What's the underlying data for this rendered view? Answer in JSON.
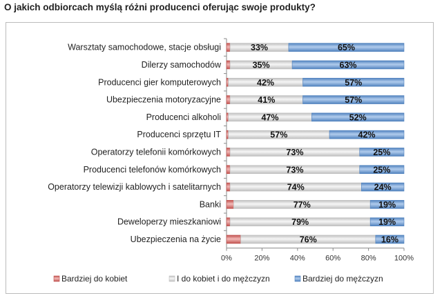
{
  "chart_data": {
    "type": "bar",
    "orientation": "horizontal",
    "stacked": true,
    "title": "O jakich odbiorcach myślą różni producenci oferując swoje produkty?",
    "categories": [
      "Warsztaty samochodowe, stacje obsługi",
      "Dilerzy samochodów",
      "Producenci gier komputerowych",
      "Ubezpieczenia motoryzacyjne",
      "Producenci alkoholi",
      "Producenci sprzętu IT",
      "Operatorzy telefonii komórkowych",
      "Producenci telefonów komórkowych",
      "Operatorzy telewizji kablowych i satelitarnych",
      "Banki",
      "Deweloperzy mieszkaniowi",
      "Ubezpieczenia na życie"
    ],
    "series": [
      {
        "name": "Bardziej do kobiet",
        "color": "#c0504d",
        "values": [
          2,
          2,
          1,
          2,
          1,
          1,
          2,
          2,
          2,
          4,
          2,
          8
        ],
        "labeled": false
      },
      {
        "name": "I do kobiet i do mężczyzn",
        "color": "#bfbfbf",
        "values": [
          33,
          35,
          42,
          41,
          47,
          57,
          73,
          73,
          74,
          77,
          79,
          76
        ],
        "labeled": true
      },
      {
        "name": "Bardziej do mężczyzn",
        "color": "#4f81bd",
        "values": [
          65,
          63,
          57,
          57,
          52,
          42,
          25,
          25,
          24,
          19,
          19,
          16
        ],
        "labeled": true
      }
    ],
    "xlim": [
      0,
      100
    ],
    "xticks": [
      "0%",
      "20%",
      "40%",
      "60%",
      "80%",
      "100%"
    ],
    "grid": false,
    "legend": "bottom"
  }
}
